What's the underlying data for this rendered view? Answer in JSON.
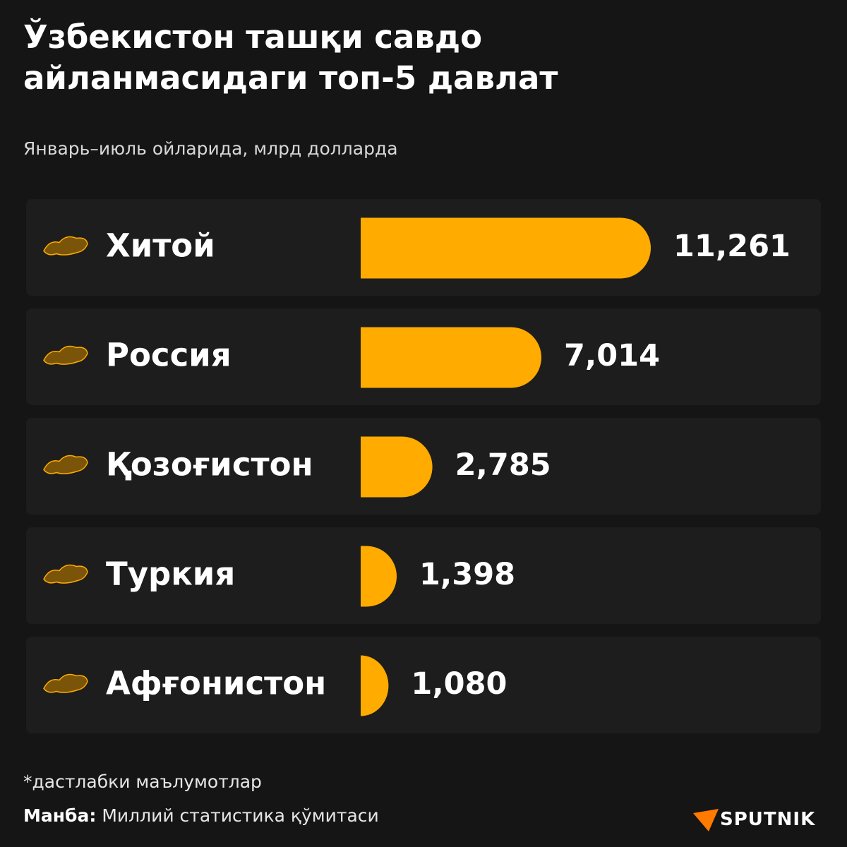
{
  "chart_data": {
    "type": "bar",
    "orientation": "horizontal",
    "title": "Ўзбекистон ташқи савдо айланмасидаги топ-5 давлат",
    "subtitle": "Январь–июль ойларида, млрд долларда",
    "categories": [
      "Хитой",
      "Россия",
      "Қозоғистон",
      "Туркия",
      "Афғонистон"
    ],
    "values": [
      11.261,
      7.014,
      2.785,
      1.398,
      1.08
    ],
    "value_labels": [
      "11,261",
      "7,014",
      "2,785",
      "1,398",
      "1,080"
    ],
    "color": "#ffab00",
    "footnote": "*дастлабки маълумотлар",
    "source_label": "Манба:",
    "source": "Миллий статистика қўмитаси",
    "brand": "SPUTNIK"
  }
}
